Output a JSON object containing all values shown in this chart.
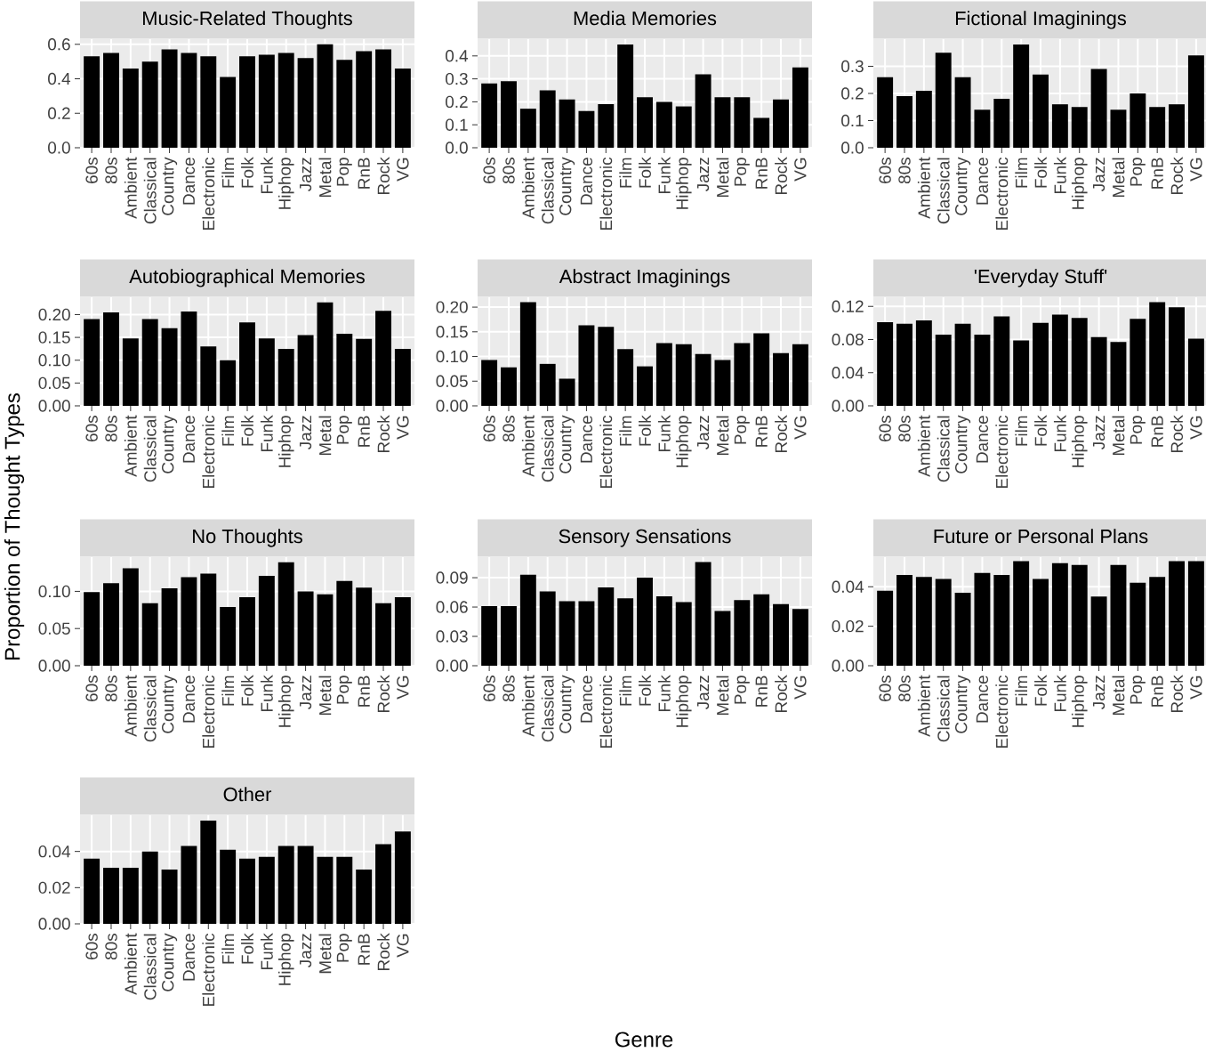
{
  "chart_data": [
    {
      "type": "bar",
      "title": "Music-Related Thoughts",
      "categories": [
        "60s",
        "80s",
        "Ambient",
        "Classical",
        "Country",
        "Dance",
        "Electronic",
        "Film",
        "Folk",
        "Funk",
        "Hiphop",
        "Jazz",
        "Metal",
        "Pop",
        "RnB",
        "Rock",
        "VG"
      ],
      "values": [
        0.53,
        0.55,
        0.46,
        0.5,
        0.57,
        0.55,
        0.53,
        0.41,
        0.53,
        0.54,
        0.55,
        0.52,
        0.6,
        0.51,
        0.56,
        0.57,
        0.46
      ],
      "color": "#000000",
      "ylim": [
        0,
        0.63
      ],
      "yticks": [
        {
          "value": 0,
          "label": "0.0"
        },
        0.2,
        0.4,
        0.6
      ],
      "grid": true
    },
    {
      "type": "bar",
      "title": "Media Memories",
      "categories": [
        "60s",
        "80s",
        "Ambient",
        "Classical",
        "Country",
        "Dance",
        "Electronic",
        "Film",
        "Folk",
        "Funk",
        "Hiphop",
        "Jazz",
        "Metal",
        "Pop",
        "RnB",
        "Rock",
        "VG"
      ],
      "values": [
        0.28,
        0.29,
        0.17,
        0.25,
        0.21,
        0.16,
        0.19,
        0.45,
        0.22,
        0.2,
        0.18,
        0.32,
        0.22,
        0.22,
        0.13,
        0.21,
        0.35
      ],
      "color": "#000000",
      "ylim": [
        0,
        0.473
      ],
      "yticks": [
        {
          "value": 0,
          "label": "0.0"
        },
        0.1,
        0.2,
        0.3,
        0.4
      ],
      "grid": true
    },
    {
      "type": "bar",
      "title": "Fictional Imaginings",
      "categories": [
        "60s",
        "80s",
        "Ambient",
        "Classical",
        "Country",
        "Dance",
        "Electronic",
        "Film",
        "Folk",
        "Funk",
        "Hiphop",
        "Jazz",
        "Metal",
        "Pop",
        "RnB",
        "Rock",
        "VG"
      ],
      "values": [
        0.26,
        0.19,
        0.21,
        0.35,
        0.26,
        0.14,
        0.18,
        0.38,
        0.27,
        0.16,
        0.15,
        0.29,
        0.14,
        0.2,
        0.15,
        0.16,
        0.34
      ],
      "color": "#000000",
      "ylim": [
        0,
        0.4
      ],
      "yticks": [
        {
          "value": 0,
          "label": "0.0"
        },
        0.1,
        0.2,
        0.3
      ],
      "grid": true
    },
    {
      "type": "bar",
      "title": "Autobiographical Memories",
      "categories": [
        "60s",
        "80s",
        "Ambient",
        "Classical",
        "Country",
        "Dance",
        "Electronic",
        "Film",
        "Folk",
        "Funk",
        "Hiphop",
        "Jazz",
        "Metal",
        "Pop",
        "RnB",
        "Rock",
        "VG"
      ],
      "values": [
        0.19,
        0.205,
        0.148,
        0.19,
        0.17,
        0.207,
        0.13,
        0.1,
        0.183,
        0.148,
        0.125,
        0.155,
        0.227,
        0.158,
        0.147,
        0.208,
        0.125
      ],
      "color": "#000000",
      "ylim": [
        0,
        0.238
      ],
      "yticks": [
        {
          "value": 0,
          "label": "0.00"
        },
        {
          "value": 0.05,
          "label": "0.05"
        },
        {
          "value": 0.1,
          "label": "0.10"
        },
        {
          "value": 0.15,
          "label": "0.15"
        },
        {
          "value": 0.2,
          "label": "0.20"
        }
      ],
      "grid": true
    },
    {
      "type": "bar",
      "title": "Abstract Imaginings",
      "categories": [
        "60s",
        "80s",
        "Ambient",
        "Classical",
        "Country",
        "Dance",
        "Electronic",
        "Film",
        "Folk",
        "Funk",
        "Hiphop",
        "Jazz",
        "Metal",
        "Pop",
        "RnB",
        "Rock",
        "VG"
      ],
      "values": [
        0.093,
        0.078,
        0.21,
        0.085,
        0.055,
        0.163,
        0.16,
        0.115,
        0.08,
        0.127,
        0.125,
        0.105,
        0.093,
        0.127,
        0.147,
        0.107,
        0.125
      ],
      "color": "#000000",
      "ylim": [
        0,
        0.22
      ],
      "yticks": [
        {
          "value": 0,
          "label": "0.00"
        },
        {
          "value": 0.05,
          "label": "0.05"
        },
        {
          "value": 0.1,
          "label": "0.10"
        },
        {
          "value": 0.15,
          "label": "0.15"
        },
        {
          "value": 0.2,
          "label": "0.20"
        }
      ],
      "grid": true
    },
    {
      "type": "bar",
      "title": "'Everyday Stuff'",
      "categories": [
        "60s",
        "80s",
        "Ambient",
        "Classical",
        "Country",
        "Dance",
        "Electronic",
        "Film",
        "Folk",
        "Funk",
        "Hiphop",
        "Jazz",
        "Metal",
        "Pop",
        "RnB",
        "Rock",
        "VG"
      ],
      "values": [
        0.101,
        0.099,
        0.103,
        0.086,
        0.099,
        0.086,
        0.108,
        0.079,
        0.1,
        0.11,
        0.106,
        0.083,
        0.077,
        0.105,
        0.125,
        0.119,
        0.081
      ],
      "color": "#000000",
      "ylim": [
        0,
        0.131
      ],
      "yticks": [
        {
          "value": 0,
          "label": "0.00"
        },
        0.04,
        0.08,
        0.12
      ],
      "grid": true
    },
    {
      "type": "bar",
      "title": "No Thoughts",
      "ylabel": "Proportion of Thought Types",
      "categories": [
        "60s",
        "80s",
        "Ambient",
        "Classical",
        "Country",
        "Dance",
        "Electronic",
        "Film",
        "Folk",
        "Funk",
        "Hiphop",
        "Jazz",
        "Metal",
        "Pop",
        "RnB",
        "Rock",
        "VG"
      ],
      "values": [
        0.099,
        0.111,
        0.131,
        0.084,
        0.104,
        0.119,
        0.124,
        0.079,
        0.092,
        0.121,
        0.139,
        0.1,
        0.096,
        0.114,
        0.105,
        0.084,
        0.092
      ],
      "color": "#000000",
      "ylim": [
        0,
        0.146
      ],
      "yticks": [
        {
          "value": 0,
          "label": "0.00"
        },
        0.05,
        {
          "value": 0.1,
          "label": "0.10"
        }
      ],
      "grid": true
    },
    {
      "type": "bar",
      "title": "Sensory Sensations",
      "xlabel": "Genre",
      "categories": [
        "60s",
        "80s",
        "Ambient",
        "Classical",
        "Country",
        "Dance",
        "Electronic",
        "Film",
        "Folk",
        "Funk",
        "Hiphop",
        "Jazz",
        "Metal",
        "Pop",
        "RnB",
        "Rock",
        "VG"
      ],
      "values": [
        0.061,
        0.061,
        0.093,
        0.076,
        0.066,
        0.066,
        0.08,
        0.069,
        0.09,
        0.071,
        0.065,
        0.106,
        0.056,
        0.067,
        0.073,
        0.063,
        0.058
      ],
      "color": "#000000",
      "ylim": [
        0,
        0.111
      ],
      "yticks": [
        {
          "value": 0,
          "label": "0.00"
        },
        0.03,
        {
          "value": 0.06,
          "label": "0.06"
        },
        0.09
      ],
      "grid": true
    },
    {
      "type": "bar",
      "title": "Future or Personal Plans",
      "categories": [
        "60s",
        "80s",
        "Ambient",
        "Classical",
        "Country",
        "Dance",
        "Electronic",
        "Film",
        "Folk",
        "Funk",
        "Hiphop",
        "Jazz",
        "Metal",
        "Pop",
        "RnB",
        "Rock",
        "VG"
      ],
      "values": [
        0.038,
        0.046,
        0.045,
        0.044,
        0.037,
        0.047,
        0.046,
        0.053,
        0.044,
        0.052,
        0.051,
        0.035,
        0.051,
        0.042,
        0.045,
        0.053,
        0.053
      ],
      "color": "#000000",
      "ylim": [
        0,
        0.055
      ],
      "yticks": [
        {
          "value": 0,
          "label": "0.00"
        },
        0.02,
        0.04
      ],
      "grid": true
    },
    {
      "type": "bar",
      "title": "Other",
      "categories": [
        "60s",
        "80s",
        "Ambient",
        "Classical",
        "Country",
        "Dance",
        "Electronic",
        "Film",
        "Folk",
        "Funk",
        "Hiphop",
        "Jazz",
        "Metal",
        "Pop",
        "RnB",
        "Rock",
        "VG"
      ],
      "values": [
        0.036,
        0.031,
        0.031,
        0.04,
        0.03,
        0.043,
        0.057,
        0.041,
        0.036,
        0.037,
        0.043,
        0.043,
        0.037,
        0.037,
        0.03,
        0.044,
        0.051
      ],
      "color": "#000000",
      "ylim": [
        0,
        0.06
      ],
      "yticks": [
        {
          "value": 0,
          "label": "0.00"
        },
        0.02,
        0.04
      ],
      "grid": true
    }
  ]
}
